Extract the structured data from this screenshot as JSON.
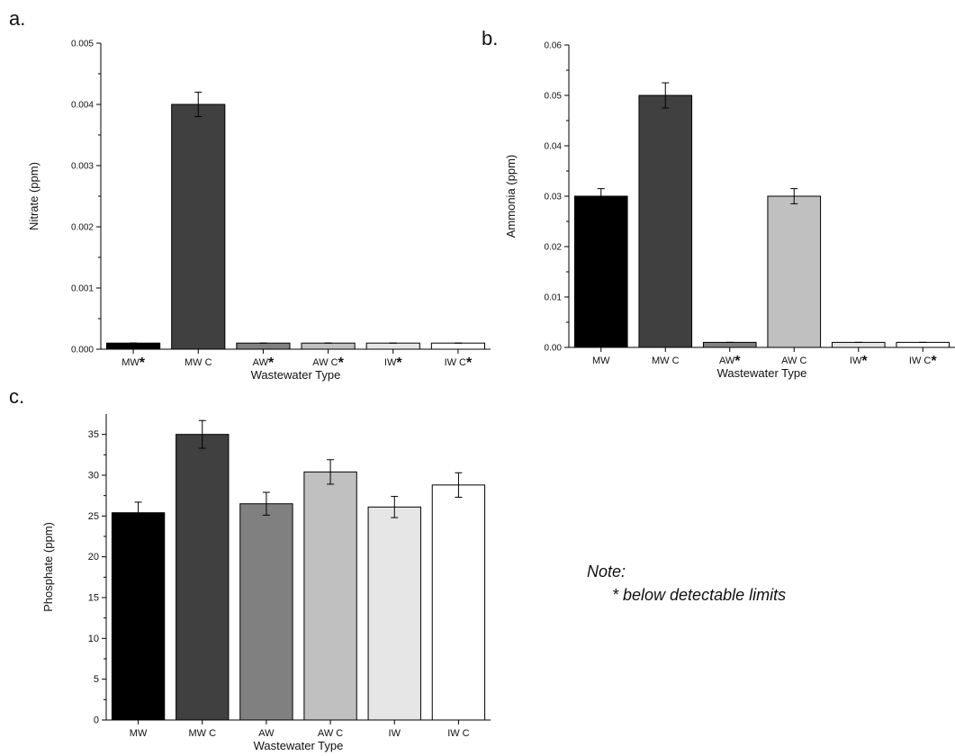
{
  "figure": {
    "note_title": "Note:",
    "note_text": "* below detectable limits"
  },
  "chart_data": [
    {
      "panel": "a.",
      "type": "bar",
      "categories": [
        "MW",
        "MW C",
        "AW",
        "AW C",
        "IW",
        "IW C"
      ],
      "below_detection": [
        true,
        false,
        true,
        true,
        true,
        true
      ],
      "values": [
        0.0001,
        0.004,
        0.0001,
        0.0001,
        0.0001,
        0.0001
      ],
      "errors": [
        0,
        0.0002,
        0,
        0,
        0,
        0
      ],
      "xlabel": "Wastewater Type",
      "ylabel": "Nitrate (ppm)",
      "ylim": [
        0,
        0.005
      ],
      "yticks": [
        "0.000",
        "0.001",
        "0.002",
        "0.003",
        "0.004",
        "0.005"
      ],
      "colors": [
        "#000000",
        "#404040",
        "#808080",
        "#c0c0c0",
        "#e6e6e6",
        "#ffffff"
      ],
      "grid": false
    },
    {
      "panel": "b.",
      "type": "bar",
      "categories": [
        "MW",
        "MW C",
        "AW",
        "AW C",
        "IW",
        "IW C"
      ],
      "below_detection": [
        false,
        false,
        true,
        false,
        true,
        true
      ],
      "values": [
        0.03,
        0.05,
        0.001,
        0.03,
        0.001,
        0.001
      ],
      "errors": [
        0.0015,
        0.0025,
        0,
        0.0015,
        0,
        0
      ],
      "xlabel": "Wastewater Type",
      "ylabel": "Ammonia (ppm)",
      "ylim": [
        0,
        0.06
      ],
      "yticks": [
        "0.00",
        "0.01",
        "0.02",
        "0.03",
        "0.04",
        "0.05",
        "0.06"
      ],
      "colors": [
        "#000000",
        "#404040",
        "#808080",
        "#c0c0c0",
        "#e6e6e6",
        "#ffffff"
      ],
      "grid": false
    },
    {
      "panel": "c.",
      "type": "bar",
      "categories": [
        "MW",
        "MW C",
        "AW",
        "AW C",
        "IW",
        "IW C"
      ],
      "below_detection": [
        false,
        false,
        false,
        false,
        false,
        false
      ],
      "values": [
        25.4,
        35.0,
        26.5,
        30.4,
        26.1,
        28.8
      ],
      "errors": [
        1.3,
        1.7,
        1.4,
        1.5,
        1.3,
        1.5
      ],
      "xlabel": "Wastewater Type",
      "ylabel": "Phosphate (ppm)",
      "ylim": [
        0,
        37.5
      ],
      "yticks": [
        "0",
        "5",
        "10",
        "15",
        "20",
        "25",
        "30",
        "35"
      ],
      "colors": [
        "#000000",
        "#404040",
        "#808080",
        "#c0c0c0",
        "#e6e6e6",
        "#ffffff"
      ],
      "grid": false
    }
  ]
}
